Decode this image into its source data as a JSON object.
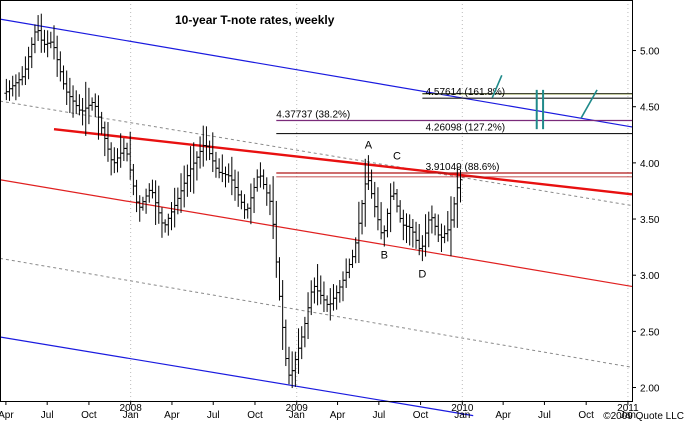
{
  "chart_data": {
    "type": "ohlc",
    "title": "10-year T-note rates, weekly",
    "copyright": "2009 Quote LLC",
    "ylim": [
      1.88,
      5.45
    ],
    "y_ticks": [
      "5.00",
      "4.50",
      "4.00",
      "3.50",
      "3.00",
      "2.50",
      "2.00"
    ],
    "x_range": [
      "2007-03-19",
      "2011-01-10"
    ],
    "month_labels": [
      {
        "date": "2007-04-01",
        "label": "Apr"
      },
      {
        "date": "2007-07-01",
        "label": "Jul"
      },
      {
        "date": "2007-10-01",
        "label": "Oct"
      },
      {
        "date": "2008-01-01",
        "label": "Jan"
      },
      {
        "date": "2008-04-01",
        "label": "Apr"
      },
      {
        "date": "2008-07-01",
        "label": "Jul"
      },
      {
        "date": "2008-10-01",
        "label": "Oct"
      },
      {
        "date": "2009-01-01",
        "label": "Jan"
      },
      {
        "date": "2009-04-01",
        "label": "Apr"
      },
      {
        "date": "2009-07-01",
        "label": "Jul"
      },
      {
        "date": "2009-10-01",
        "label": "Oct"
      },
      {
        "date": "2010-01-01",
        "label": "Jan"
      },
      {
        "date": "2010-04-01",
        "label": "Apr"
      },
      {
        "date": "2010-07-01",
        "label": "Jul"
      },
      {
        "date": "2010-10-01",
        "label": "Oct"
      },
      {
        "date": "2011-01-01",
        "label": "Jan"
      }
    ],
    "year_labels": [
      {
        "date": "2008-01-01",
        "label": "2008"
      },
      {
        "date": "2009-01-01",
        "label": "2009"
      },
      {
        "date": "2010-01-01",
        "label": "2010"
      },
      {
        "date": "2011-01-01",
        "label": "2011"
      }
    ],
    "price_anchors": [
      {
        "date": "2007-04-02",
        "value": 4.62
      },
      {
        "date": "2007-05-14",
        "value": 4.78
      },
      {
        "date": "2007-06-11",
        "value": 5.22
      },
      {
        "date": "2007-06-25",
        "value": 5.05
      },
      {
        "date": "2007-07-16",
        "value": 5.08
      },
      {
        "date": "2007-08-13",
        "value": 4.65
      },
      {
        "date": "2007-09-17",
        "value": 4.45
      },
      {
        "date": "2007-10-15",
        "value": 4.55
      },
      {
        "date": "2007-11-26",
        "value": 3.98
      },
      {
        "date": "2007-12-24",
        "value": 4.15
      },
      {
        "date": "2008-01-21",
        "value": 3.58
      },
      {
        "date": "2008-02-18",
        "value": 3.78
      },
      {
        "date": "2008-03-17",
        "value": 3.42
      },
      {
        "date": "2008-04-14",
        "value": 3.65
      },
      {
        "date": "2008-05-12",
        "value": 3.92
      },
      {
        "date": "2008-06-16",
        "value": 4.18
      },
      {
        "date": "2008-07-14",
        "value": 3.92
      },
      {
        "date": "2008-08-11",
        "value": 3.88
      },
      {
        "date": "2008-09-15",
        "value": 3.55
      },
      {
        "date": "2008-10-13",
        "value": 3.92
      },
      {
        "date": "2008-11-10",
        "value": 3.62
      },
      {
        "date": "2008-11-24",
        "value": 2.95
      },
      {
        "date": "2008-12-15",
        "value": 2.12
      },
      {
        "date": "2008-12-22",
        "value": 2.1
      },
      {
        "date": "2009-01-19",
        "value": 2.5
      },
      {
        "date": "2009-02-09",
        "value": 2.92
      },
      {
        "date": "2009-03-16",
        "value": 2.72
      },
      {
        "date": "2009-04-13",
        "value": 2.92
      },
      {
        "date": "2009-05-11",
        "value": 3.2
      },
      {
        "date": "2009-06-08",
        "value": 3.9
      },
      {
        "date": "2009-07-13",
        "value": 3.32
      },
      {
        "date": "2009-08-03",
        "value": 3.78
      },
      {
        "date": "2009-08-24",
        "value": 3.45
      },
      {
        "date": "2009-09-14",
        "value": 3.42
      },
      {
        "date": "2009-10-05",
        "value": 3.2
      },
      {
        "date": "2009-10-26",
        "value": 3.55
      },
      {
        "date": "2009-11-16",
        "value": 3.32
      },
      {
        "date": "2009-12-07",
        "value": 3.42
      },
      {
        "date": "2009-12-28",
        "value": 3.85
      }
    ],
    "wave_labels": [
      {
        "label": "A",
        "date": "2009-06-08",
        "value": 4.13
      },
      {
        "label": "B",
        "date": "2009-07-13",
        "value": 3.15
      },
      {
        "label": "C",
        "date": "2009-08-10",
        "value": 4.03
      },
      {
        "label": "D",
        "date": "2009-10-05",
        "value": 2.98
      }
    ],
    "levels": [
      {
        "label": "4.57614 (161.8%)",
        "value": 4.576,
        "color": "#1b1b1b",
        "from": "2009-10-05",
        "to": "2010-11-15"
      },
      {
        "label": "4.37737 (38.2%)",
        "value": 4.377,
        "color": "#7a2a7a",
        "from": "2008-11-17",
        "to": "2010-11-15"
      },
      {
        "label": "4.26098 (127.2%)",
        "value": 4.261,
        "color": "#1b1b1b",
        "from": "2008-11-17",
        "to": "2010-11-15"
      },
      {
        "label": "3.91049 (88.6%)",
        "value": 3.91,
        "color": "#b01818",
        "from": "2008-11-17",
        "to": "2010-11-15"
      }
    ],
    "line_colors": {
      "channel_outer": "#1a1adf",
      "channel_inner": "#e02020",
      "trendline": "#e81010",
      "midline": "#8a8a8a",
      "fib_green": "#8aa010",
      "fib_purple": "#7a2a7a",
      "fib_red": "#b01818",
      "markers": "#1f8a8a",
      "bars": "#000000"
    }
  }
}
